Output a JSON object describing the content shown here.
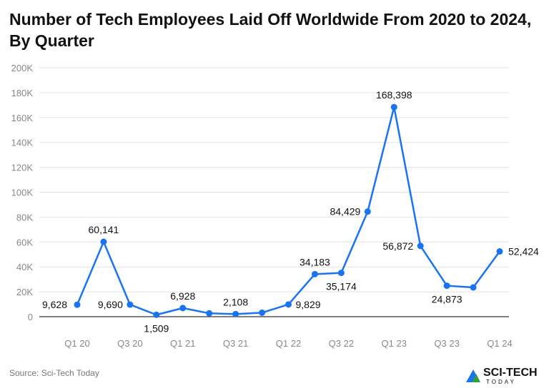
{
  "chart_data": {
    "type": "line",
    "title": "Number of Tech Employees Laid Off Worldwide From 2020 to 2024, By Quarter",
    "categories": [
      "Q1 20",
      "Q2 20",
      "Q3 20",
      "Q4 20",
      "Q1 21",
      "Q2 21",
      "Q3 21",
      "Q4 21",
      "Q1 22",
      "Q2 22",
      "Q3 22",
      "Q4 22",
      "Q1 23",
      "Q2 23",
      "Q3 23",
      "Q4 23",
      "Q1 24"
    ],
    "values": [
      9628,
      60141,
      9690,
      1509,
      6928,
      2700,
      2108,
      3200,
      9829,
      34183,
      35174,
      84429,
      168398,
      56872,
      24873,
      23500,
      52424
    ],
    "data_labels": [
      "9,628",
      "60,141",
      "9,690",
      "1,509",
      "6,928",
      "",
      "2,108",
      "",
      "9,829",
      "34,183",
      "35,174",
      "84,429",
      "168,398",
      "56,872",
      "24,873",
      "",
      "52,424"
    ],
    "x_tick_labels": [
      "Q1 20",
      "",
      "Q3 20",
      "",
      "Q1 21",
      "",
      "Q3 21",
      "",
      "Q1 22",
      "",
      "Q3 22",
      "",
      "Q1 23",
      "",
      "Q3 23",
      "",
      "Q1 24"
    ],
    "y_ticks": [
      0,
      20000,
      40000,
      60000,
      80000,
      100000,
      120000,
      140000,
      160000,
      180000,
      200000
    ],
    "y_tick_labels": [
      "0",
      "20K",
      "40K",
      "60K",
      "80K",
      "100K",
      "120K",
      "140K",
      "160K",
      "180K",
      "200K"
    ],
    "ylim": [
      0,
      200000
    ],
    "grid": true,
    "line_color": "#1a73f0",
    "xlabel": "",
    "ylabel": ""
  },
  "source": "Source: Sci-Tech Today",
  "logo": {
    "name": "SCI-TECH",
    "sub": "TODAY"
  }
}
